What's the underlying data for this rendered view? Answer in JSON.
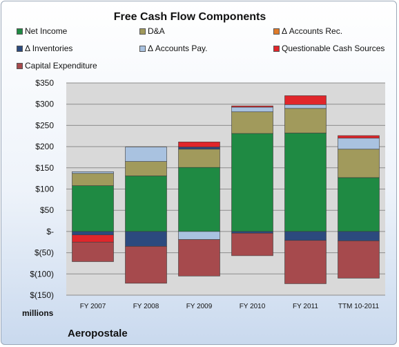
{
  "footer": "Aeropostale",
  "units_label": "millions",
  "colors": {
    "net_income": "#1f8a43",
    "da": "#a19a5c",
    "accounts_rec": "#e07b2a",
    "inventories": "#2c4a7e",
    "accounts_pay": "#a9c2e0",
    "questionable": "#e0262b",
    "capex": "#a64a4d"
  },
  "chart_data": {
    "type": "bar",
    "stacked": true,
    "title": "Free Cash Flow Components",
    "categories": [
      "FY 2007",
      "FY 2008",
      "FY 2009",
      "FY 2010",
      "FY 2011",
      "TTM 10-2011"
    ],
    "series": [
      {
        "name": "Net Income",
        "key": "net_income",
        "values": [
          108,
          131,
          151,
          231,
          232,
          127
        ]
      },
      {
        "name": "D&A",
        "key": "da",
        "values": [
          29,
          34,
          43,
          51,
          58,
          67
        ]
      },
      {
        "name": "Δ Accounts Rec.",
        "key": "accounts_rec",
        "values": [
          0,
          0,
          0,
          0,
          0,
          0
        ]
      },
      {
        "name": "Δ Inventories",
        "key": "inventories",
        "values": [
          -8,
          -35,
          5,
          -4,
          -21,
          -22
        ]
      },
      {
        "name": "Δ Accounts Pay.",
        "key": "accounts_pay",
        "values": [
          4,
          34,
          -19,
          11,
          9,
          26
        ]
      },
      {
        "name": "Questionable Cash Sources",
        "key": "questionable",
        "values": [
          -17,
          0,
          12,
          3,
          21,
          6
        ]
      },
      {
        "name": "Capital Expenditure",
        "key": "capex",
        "values": [
          -46,
          -87,
          -86,
          -53,
          -102,
          -88
        ]
      }
    ],
    "y_ticks": [
      "$350",
      "$300",
      "$250",
      "$200",
      "$150",
      "$100",
      "$50",
      "$-",
      "$(50)",
      "$(100)",
      "$(150)"
    ],
    "ylim": [
      -150,
      350
    ],
    "grid": true,
    "legend_position": "top"
  }
}
